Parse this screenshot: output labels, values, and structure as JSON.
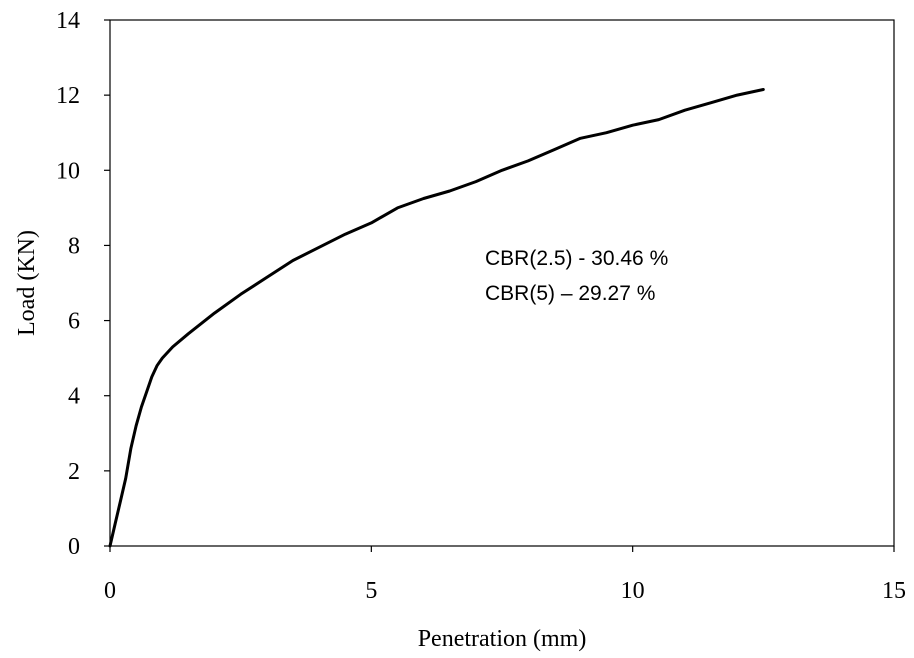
{
  "chart_data": {
    "type": "line",
    "title": "",
    "xlabel": "Penetration  (mm)",
    "ylabel": "Load (KN)",
    "xlim": [
      0,
      15
    ],
    "ylim": [
      0,
      14
    ],
    "x_ticks": [
      "0",
      "5",
      "10",
      "15"
    ],
    "y_ticks": [
      "0",
      "2",
      "4",
      "6",
      "8",
      "10",
      "12",
      "14"
    ],
    "grid": false,
    "legend": "none",
    "annotations": [
      "CBR(2.5) -  30.46 %",
      "CBR(5) – 29.27 %"
    ],
    "series": [
      {
        "x": [
          0,
          0.1,
          0.2,
          0.3,
          0.4,
          0.5,
          0.6,
          0.7,
          0.8,
          0.9,
          1.0,
          1.2,
          1.5,
          2.0,
          2.5,
          3.0,
          3.5,
          4.0,
          4.5,
          5.0,
          5.5,
          6.0,
          6.5,
          7.0,
          7.5,
          8.0,
          8.5,
          9.0,
          9.5,
          10.0,
          10.5,
          11.0,
          11.5,
          12.0,
          12.5
        ],
        "y": [
          0,
          0.6,
          1.2,
          1.8,
          2.6,
          3.2,
          3.7,
          4.1,
          4.5,
          4.8,
          5.0,
          5.3,
          5.65,
          6.2,
          6.7,
          7.15,
          7.6,
          7.95,
          8.3,
          8.6,
          9.0,
          9.25,
          9.45,
          9.7,
          10.0,
          10.25,
          10.55,
          10.85,
          11.0,
          11.2,
          11.35,
          11.6,
          11.8,
          12.0,
          12.15
        ],
        "color": "#000000"
      }
    ]
  }
}
